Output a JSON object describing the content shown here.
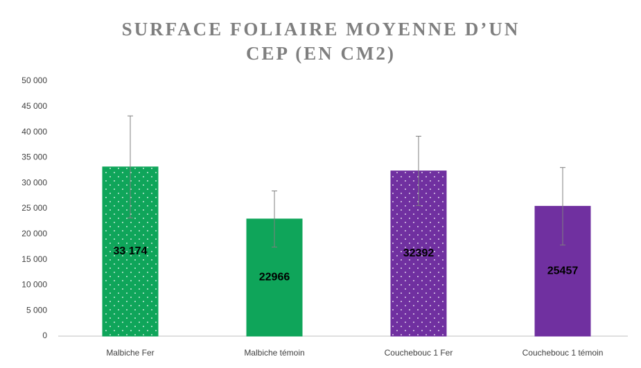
{
  "chart_data": {
    "type": "bar",
    "title": [
      "SURFACE FOLIAIRE MOYENNE D’UN",
      "CEP (EN CM2)"
    ],
    "categories": [
      "Malbiche Fer",
      "Malbiche témoin",
      "Couchebouc 1 Fer",
      "Couchebouc 1 témoin"
    ],
    "values": [
      33174,
      22966,
      32392,
      25457
    ],
    "value_labels": [
      "33 174",
      "22966",
      "32392",
      "25457"
    ],
    "errors": [
      10000,
      5500,
      6800,
      7600
    ],
    "colors": [
      "#0fa55a",
      "#0fa55a",
      "#7030a0",
      "#7030a0"
    ],
    "patterns": [
      "dots",
      "solid",
      "dots",
      "solid"
    ],
    "ylim": [
      0,
      50000
    ],
    "yticks": [
      0,
      {
        "value": 5000,
        "label": "5 000"
      },
      {
        "value": 10000,
        "label": "10 000"
      },
      {
        "value": 15000,
        "label": "15 000"
      },
      {
        "value": 20000,
        "label": "20 000"
      },
      {
        "value": 25000,
        "label": "25 000"
      },
      {
        "value": 30000,
        "label": "30 000"
      },
      {
        "value": 35000,
        "label": "35 000"
      },
      {
        "value": 40000,
        "label": "40 000"
      },
      {
        "value": 45000,
        "label": "45 000"
      },
      {
        "value": 50000,
        "label": "50 000"
      }
    ],
    "grid": false
  }
}
